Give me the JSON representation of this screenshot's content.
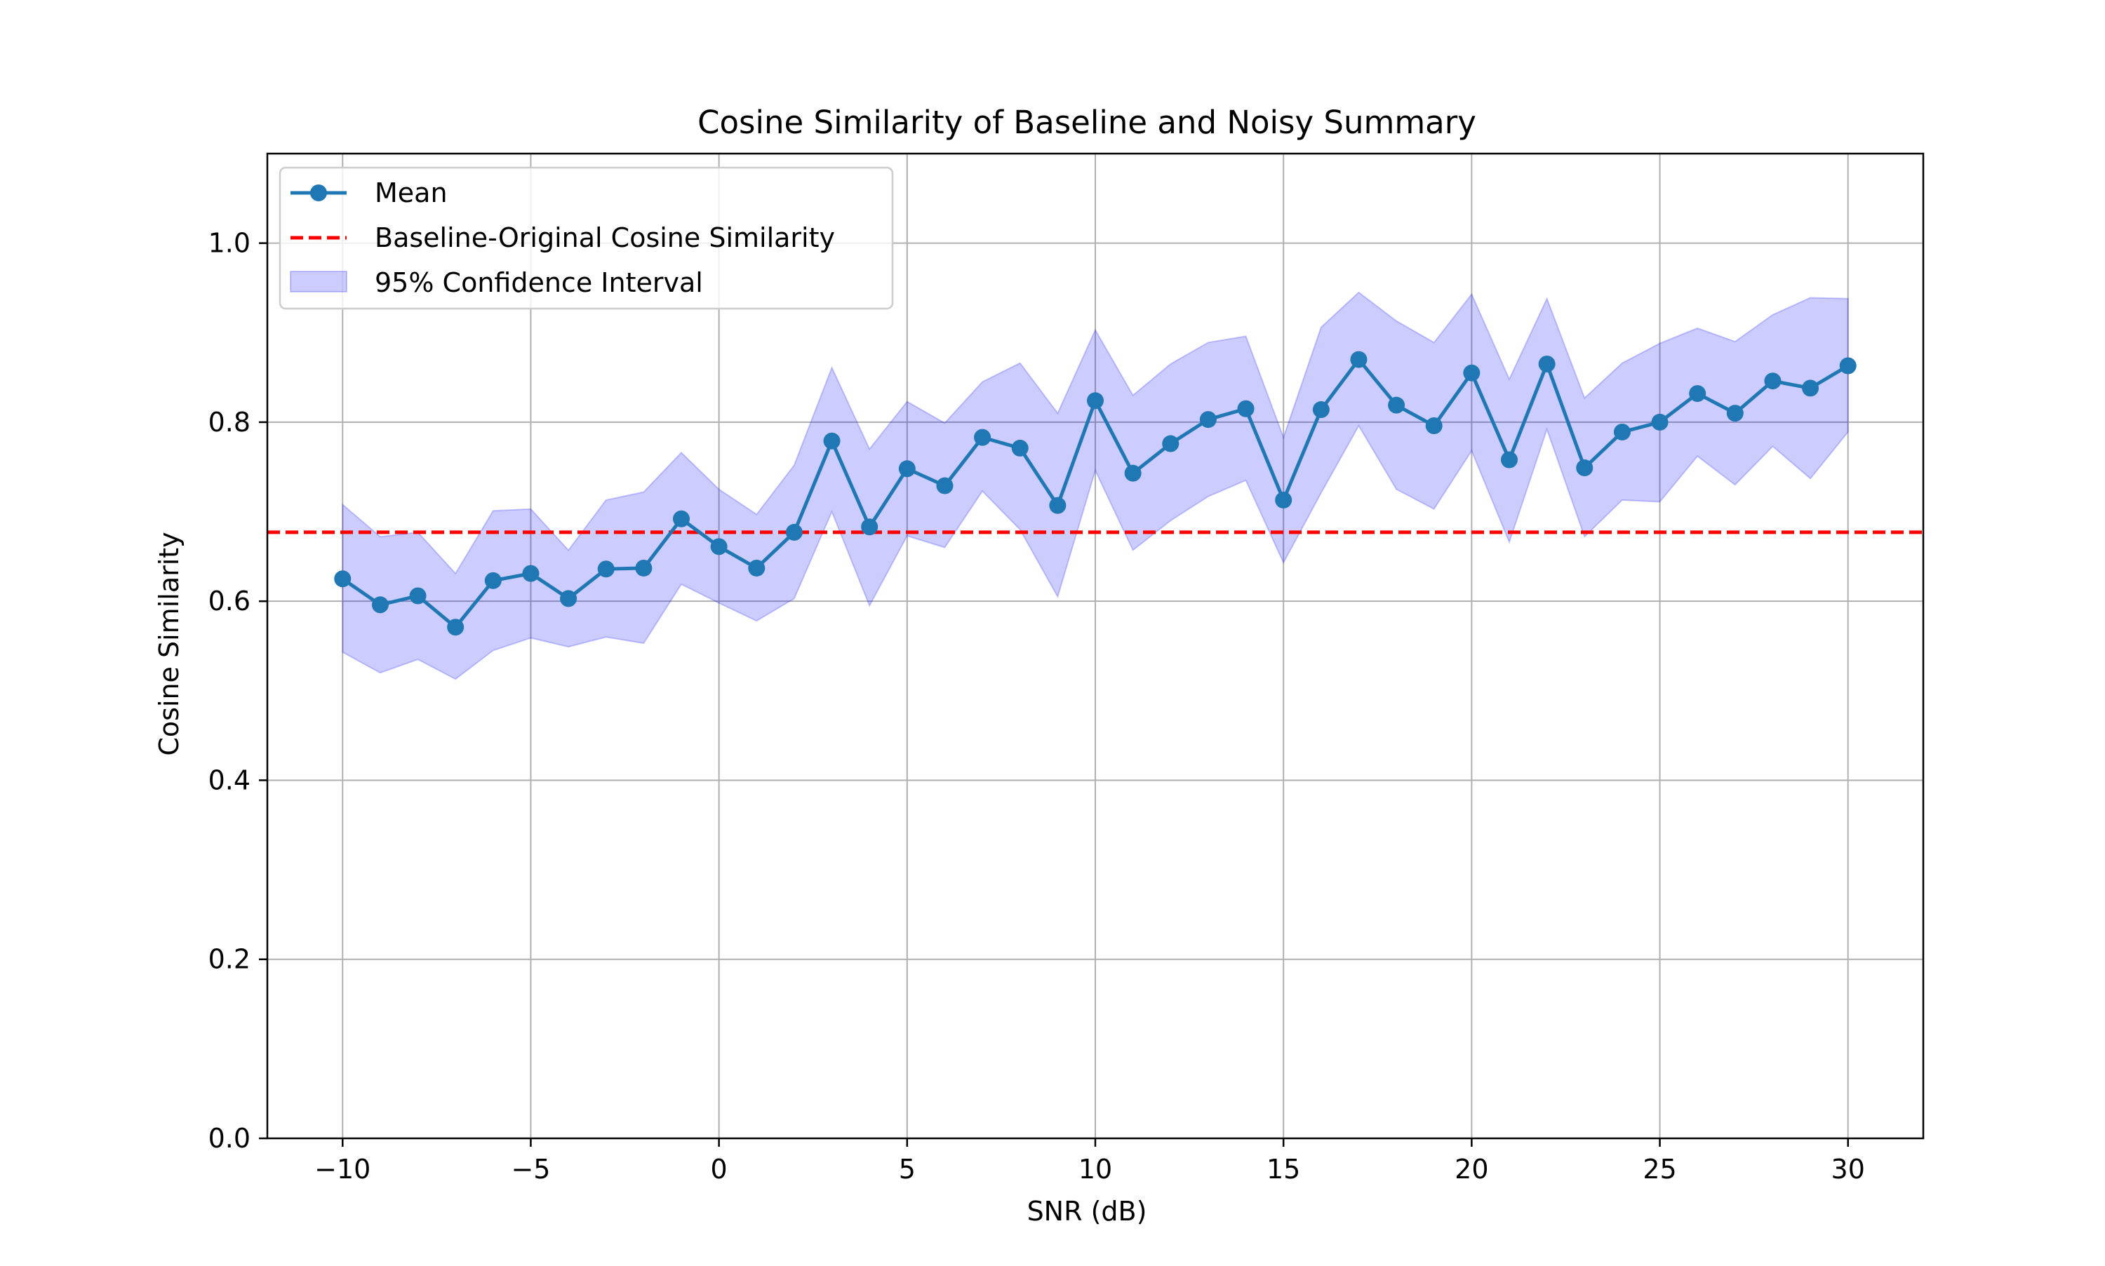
{
  "chart_data": {
    "type": "line",
    "title": "Cosine Similarity of Baseline and Noisy Summary",
    "xlabel": "SNR (dB)",
    "ylabel": "Cosine Similarity",
    "xlim": [
      -12,
      32
    ],
    "ylim": [
      0.0,
      1.1
    ],
    "xticks": [
      -10,
      -5,
      0,
      5,
      10,
      15,
      20,
      25,
      30
    ],
    "xtick_labels": [
      "−10",
      "−5",
      "0",
      "5",
      "10",
      "15",
      "20",
      "25",
      "30"
    ],
    "yticks": [
      0.0,
      0.2,
      0.4,
      0.6,
      0.8,
      1.0
    ],
    "ytick_labels": [
      "0.0",
      "0.2",
      "0.4",
      "0.6",
      "0.8",
      "1.0"
    ],
    "grid": true,
    "legend_position": "top-left",
    "x": [
      -10,
      -9,
      -8,
      -7,
      -6,
      -5,
      -4,
      -3,
      -2,
      -1,
      0,
      1,
      2,
      3,
      4,
      5,
      6,
      7,
      8,
      9,
      10,
      11,
      12,
      13,
      14,
      15,
      16,
      17,
      18,
      19,
      20,
      21,
      22,
      23,
      24,
      25,
      26,
      27,
      28,
      29,
      30
    ],
    "series": [
      {
        "name": "Mean",
        "kind": "line-marker",
        "color": "#1f77b4",
        "values": [
          0.625,
          0.596,
          0.606,
          0.571,
          0.623,
          0.631,
          0.603,
          0.636,
          0.637,
          0.692,
          0.661,
          0.637,
          0.677,
          0.779,
          0.683,
          0.748,
          0.729,
          0.783,
          0.771,
          0.707,
          0.824,
          0.743,
          0.776,
          0.803,
          0.815,
          0.713,
          0.814,
          0.87,
          0.819,
          0.796,
          0.855,
          0.758,
          0.865,
          0.749,
          0.789,
          0.8,
          0.832,
          0.81,
          0.846,
          0.838,
          0.863
        ]
      },
      {
        "name": "Baseline-Original Cosine Similarity",
        "kind": "hline-dashed",
        "color": "#ff0000",
        "value": 0.677
      },
      {
        "name": "95% Confidence Interval",
        "kind": "band",
        "color": "#0000ff",
        "lower": [
          0.543,
          0.52,
          0.535,
          0.513,
          0.545,
          0.559,
          0.549,
          0.56,
          0.553,
          0.619,
          0.598,
          0.578,
          0.603,
          0.7,
          0.595,
          0.673,
          0.66,
          0.723,
          0.68,
          0.605,
          0.746,
          0.657,
          0.69,
          0.717,
          0.735,
          0.643,
          0.721,
          0.796,
          0.725,
          0.703,
          0.768,
          0.666,
          0.792,
          0.672,
          0.713,
          0.711,
          0.762,
          0.73,
          0.773,
          0.737,
          0.789
        ],
        "upper": [
          0.708,
          0.672,
          0.677,
          0.631,
          0.701,
          0.703,
          0.657,
          0.713,
          0.722,
          0.766,
          0.725,
          0.697,
          0.752,
          0.861,
          0.77,
          0.823,
          0.799,
          0.845,
          0.866,
          0.81,
          0.903,
          0.83,
          0.865,
          0.889,
          0.896,
          0.783,
          0.906,
          0.945,
          0.913,
          0.889,
          0.943,
          0.848,
          0.938,
          0.827,
          0.866,
          0.888,
          0.905,
          0.89,
          0.92,
          0.939,
          0.938
        ]
      }
    ]
  }
}
